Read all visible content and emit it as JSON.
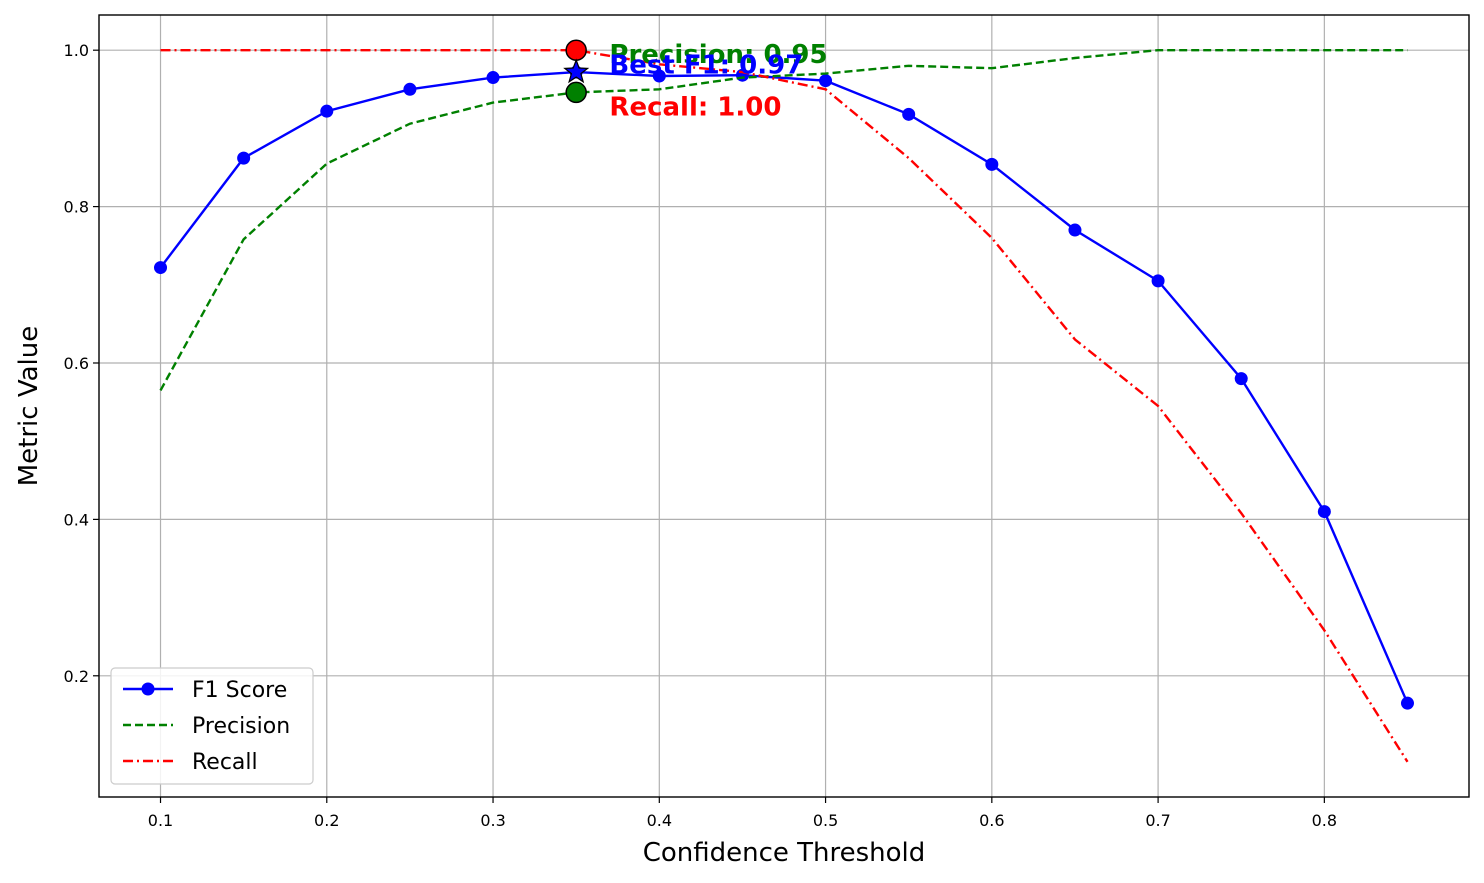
{
  "chart_data": {
    "type": "line",
    "title": "",
    "xlabel": "Confidence Threshold",
    "ylabel": "Metric Value",
    "xlim": [
      0.063,
      0.887
    ],
    "ylim": [
      0.045,
      1.045
    ],
    "xticks": [
      "0.1",
      "0.2",
      "0.3",
      "0.4",
      "0.5",
      "0.6",
      "0.7",
      "0.8"
    ],
    "xtick_values": [
      0.1,
      0.2,
      0.3,
      0.4,
      0.5,
      0.6,
      0.7,
      0.8
    ],
    "yticks": [
      "0.2",
      "0.4",
      "0.6",
      "0.8",
      "1.0"
    ],
    "ytick_values": [
      0.2,
      0.4,
      0.6,
      0.8,
      1.0
    ],
    "grid": true,
    "legend_position": "lower-left",
    "x": [
      0.1,
      0.15,
      0.2,
      0.25,
      0.3,
      0.35,
      0.4,
      0.45,
      0.5,
      0.55,
      0.6,
      0.65,
      0.7,
      0.75,
      0.8,
      0.85
    ],
    "series": [
      {
        "name": "F1 Score",
        "color": "#0000ff",
        "style": "solid-markers",
        "values": [
          0.722,
          0.862,
          0.922,
          0.95,
          0.965,
          0.972,
          0.967,
          0.968,
          0.961,
          0.918,
          0.854,
          0.77,
          0.705,
          0.58,
          0.41,
          0.165
        ]
      },
      {
        "name": "Precision",
        "color": "#008000",
        "style": "dashed",
        "values": [
          0.565,
          0.758,
          0.855,
          0.906,
          0.933,
          0.946,
          0.95,
          0.965,
          0.97,
          0.98,
          0.977,
          0.99,
          1.0,
          1.0,
          1.0,
          1.0
        ]
      },
      {
        "name": "Recall",
        "color": "#ff0000",
        "style": "dashdot",
        "values": [
          1.0,
          1.0,
          1.0,
          1.0,
          1.0,
          1.0,
          0.982,
          0.972,
          0.95,
          0.862,
          0.76,
          0.63,
          0.545,
          0.408,
          0.258,
          0.09
        ]
      }
    ],
    "highlight": {
      "x": 0.35,
      "f1": 0.972,
      "precision": 0.946,
      "recall": 1.0
    },
    "annotations": [
      {
        "text": "Precision: 0.95",
        "x": 0.37,
        "y": 0.995,
        "color": "#008000"
      },
      {
        "text": "Best F1: 0.97",
        "x": 0.37,
        "y": 0.982,
        "color": "#0000ff"
      },
      {
        "text": "Recall: 1.00",
        "x": 0.37,
        "y": 0.928,
        "color": "#ff0000"
      }
    ]
  }
}
